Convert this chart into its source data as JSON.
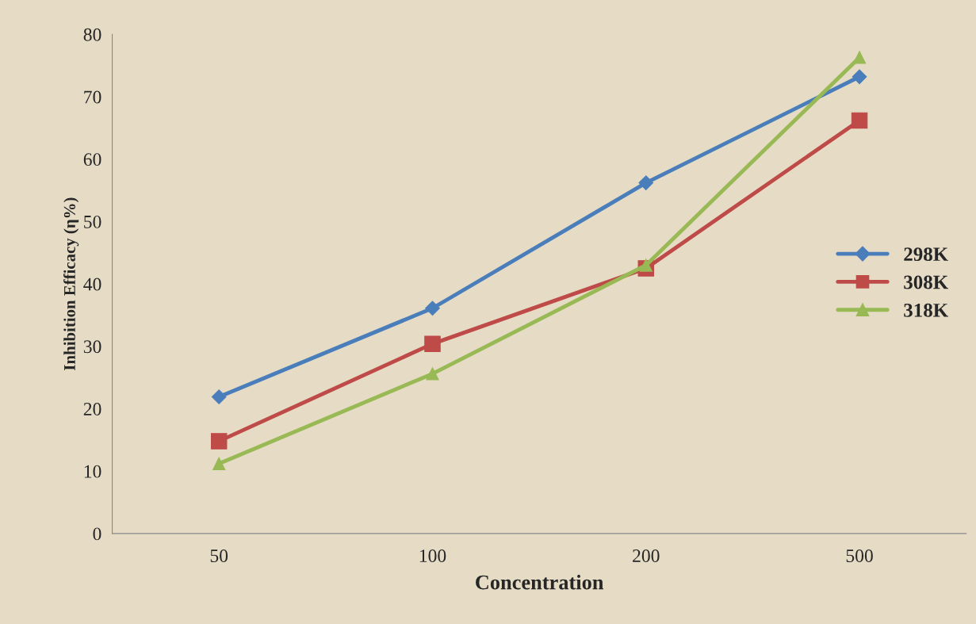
{
  "chart_data": {
    "type": "line",
    "xlabel": "Concentration",
    "ylabel": "Inhibition Efficacy (η%)",
    "categories": [
      "50",
      "100",
      "200",
      "500"
    ],
    "series": [
      {
        "name": "298K",
        "color": "#4a7ebb",
        "marker": "diamond",
        "values": [
          21.9,
          36.1,
          56.2,
          73.2
        ]
      },
      {
        "name": "308K",
        "color": "#be4b48",
        "marker": "square",
        "values": [
          14.8,
          30.4,
          42.5,
          66.2
        ]
      },
      {
        "name": "318K",
        "color": "#98b954",
        "marker": "triangle",
        "values": [
          11.2,
          25.6,
          43.0,
          76.3
        ]
      }
    ],
    "ylim": [
      0,
      80
    ],
    "yticks": [
      0,
      10,
      20,
      30,
      40,
      50,
      60,
      70,
      80
    ],
    "grid": false,
    "legend": "right"
  }
}
